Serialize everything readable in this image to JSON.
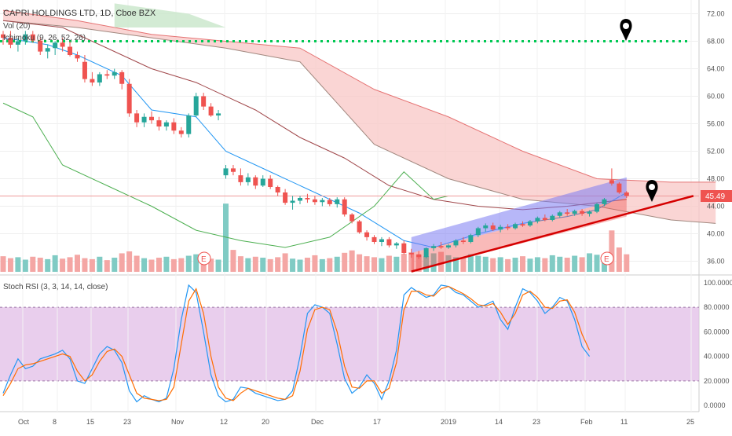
{
  "header": {
    "title": "CAPRI HOLDINGS LTD, 1D, Cboe BZX",
    "vol": "Vol (20)",
    "ichimoku": "Ichimoku (9, 26, 52, 26)"
  },
  "stoch": {
    "title": "Stoch RSI (3, 3, 14, 14, close)"
  },
  "colors": {
    "up": "#26a69a",
    "down": "#ef5350",
    "tenkan": "#2196f3",
    "kijun": "#a0474a",
    "lagging": "#4caf50",
    "cloud_red": "#f8c7c6",
    "cloud_green": "#c8e6c9",
    "stoch_bg": "#e1bee7",
    "stoch_k": "#2196f3",
    "stoch_d": "#ff6d00",
    "channel_blue": "#7b7cf3",
    "channel_red": "#ef5350",
    "trend": "#d50000",
    "dotted": "#00c853"
  },
  "chart_data": [
    {
      "type": "candlestick",
      "title": "CAPRI HOLDINGS LTD, 1D, Cboe BZX",
      "ylim": [
        34,
        74
      ],
      "y_ticks": [
        "72.00",
        "68.00",
        "64.00",
        "60.00",
        "56.00",
        "52.00",
        "48.00",
        "44.00",
        "40.00",
        "36.00"
      ],
      "x_ticks": [
        "Oct",
        "8",
        "15",
        "23",
        "Nov",
        "12",
        "20",
        "Dec",
        "17",
        "2019",
        "14",
        "23",
        "Feb",
        "11",
        "25"
      ],
      "last_price": "45.49",
      "resistance_level": 68.0,
      "earnings_markers": [
        "E",
        "E"
      ],
      "candles": [
        [
          69,
          69.5,
          67.5,
          68.5
        ],
        [
          68.5,
          69.5,
          67,
          67.5
        ],
        [
          67.5,
          68.5,
          66.5,
          68
        ],
        [
          68,
          69.5,
          67.5,
          69
        ],
        [
          69,
          69.5,
          67.8,
          68.1
        ],
        [
          68.1,
          68.5,
          66,
          66.5
        ],
        [
          66.5,
          67.5,
          65.5,
          67
        ],
        [
          67,
          68,
          66,
          67.8
        ],
        [
          67.8,
          68.5,
          66.5,
          67.2
        ],
        [
          67.2,
          68,
          65.8,
          66
        ],
        [
          66,
          66.5,
          65,
          65.5
        ],
        [
          65,
          66,
          62,
          62.5
        ],
        [
          62.5,
          63.5,
          61.5,
          62
        ],
        [
          62,
          63.5,
          61.5,
          63.2
        ],
        [
          63.2,
          63.8,
          62.5,
          63
        ],
        [
          63,
          64,
          62.5,
          63.5
        ],
        [
          63.5,
          63.8,
          61,
          61.8
        ],
        [
          61.8,
          62.5,
          57,
          57.5
        ],
        [
          57.5,
          58,
          55.5,
          56.2
        ],
        [
          56.2,
          57.5,
          55.5,
          57
        ],
        [
          57,
          57.8,
          56,
          56.5
        ],
        [
          56.5,
          57,
          55,
          55.6
        ],
        [
          55.6,
          56.5,
          55,
          56.2
        ],
        [
          56.2,
          56.8,
          54.5,
          55
        ],
        [
          55,
          55.5,
          54,
          54.5
        ],
        [
          54.5,
          57.5,
          54,
          57.2
        ],
        [
          57.2,
          60.5,
          57,
          60
        ],
        [
          60,
          60.5,
          58,
          58.5
        ],
        [
          58.5,
          59,
          57,
          57.2
        ],
        [
          57.2,
          58,
          56.5,
          57.5
        ],
        [
          48.5,
          50,
          48,
          49.5
        ],
        [
          49.5,
          50,
          48.5,
          49
        ],
        [
          48.5,
          49.5,
          47,
          47.5
        ],
        [
          47.5,
          48.8,
          47,
          48.2
        ],
        [
          48.2,
          48.5,
          46.5,
          47
        ],
        [
          47,
          48.5,
          46.8,
          48
        ],
        [
          48,
          48.5,
          46.5,
          46.8
        ],
        [
          46.8,
          47,
          45.5,
          46
        ],
        [
          46,
          46.5,
          44.2,
          44.5
        ],
        [
          44.5,
          45.5,
          43.5,
          44.8
        ],
        [
          44.8,
          45.5,
          44.3,
          45.2
        ],
        [
          45.2,
          45.8,
          44.5,
          45
        ],
        [
          45,
          45.5,
          44.2,
          44.6
        ],
        [
          44.6,
          45.2,
          44,
          44.9
        ],
        [
          44.9,
          45.2,
          44,
          44.3
        ],
        [
          44.3,
          45.3,
          43.8,
          45
        ],
        [
          45,
          45.3,
          42.5,
          42.8
        ],
        [
          42.8,
          43,
          41.5,
          41.8
        ],
        [
          41.8,
          42,
          40,
          40.2
        ],
        [
          40.2,
          40.5,
          39,
          39.5
        ],
        [
          39.5,
          39.8,
          38.5,
          38.8
        ],
        [
          38.8,
          39.5,
          38.2,
          39.2
        ],
        [
          39.2,
          39.5,
          38,
          38.3
        ],
        [
          38.3,
          38.8,
          37.8,
          38.6
        ],
        [
          38.6,
          39,
          37,
          37.2
        ],
        [
          37.2,
          37.8,
          36.5,
          37
        ],
        [
          37,
          37.5,
          36.3,
          36.6
        ],
        [
          36.6,
          38,
          36.4,
          37.9
        ],
        [
          37.9,
          38.5,
          37.5,
          38.2
        ],
        [
          38.2,
          38.8,
          37.8,
          38
        ],
        [
          38,
          38.5,
          37.8,
          38.3
        ],
        [
          38.3,
          39.2,
          38,
          39
        ],
        [
          39,
          39.5,
          38.5,
          38.8
        ],
        [
          38.8,
          40,
          38.6,
          39.8
        ],
        [
          39.8,
          41,
          39.5,
          40.8
        ],
        [
          40.8,
          41.5,
          40.3,
          41.2
        ],
        [
          41.2,
          41.6,
          40.4,
          40.6
        ],
        [
          40.6,
          41.3,
          40.2,
          41
        ],
        [
          41,
          41.4,
          40.5,
          40.8
        ],
        [
          40.8,
          41.6,
          40.6,
          41.4
        ],
        [
          41.4,
          41.8,
          41,
          41.2
        ],
        [
          41.2,
          42,
          41,
          41.8
        ],
        [
          41.8,
          42.5,
          41.5,
          42.3
        ],
        [
          42.3,
          42.8,
          41.8,
          42
        ],
        [
          42,
          42.8,
          41.8,
          42.6
        ],
        [
          42.6,
          43.3,
          42.3,
          43.1
        ],
        [
          43.1,
          43.6,
          42.6,
          42.9
        ],
        [
          42.9,
          43.5,
          42.6,
          43.3
        ],
        [
          43.3,
          43.6,
          42.6,
          42.9
        ],
        [
          42.9,
          43.4,
          42.5,
          43.2
        ],
        [
          43.2,
          44.5,
          43,
          44.3
        ],
        [
          44.3,
          45.2,
          44,
          45
        ],
        [
          47.8,
          49.5,
          47,
          47.3
        ],
        [
          47.3,
          47.5,
          45.8,
          46
        ],
        [
          46,
          46.2,
          45.2,
          45.5
        ]
      ],
      "volume": [
        3.2,
        2.8,
        3.0,
        2.5,
        3.1,
        2.9,
        2.6,
        3.4,
        2.7,
        3.0,
        3.5,
        2.8,
        2.6,
        3.1,
        2.4,
        2.9,
        3.8,
        4.2,
        3.3,
        2.8,
        2.5,
        2.9,
        3.1,
        2.6,
        2.8,
        3.3,
        3.6,
        3.0,
        2.7,
        2.5,
        14.0,
        4.5,
        3.2,
        2.8,
        3.1,
        2.9,
        2.6,
        3.0,
        3.8,
        2.7,
        2.5,
        2.9,
        3.4,
        2.6,
        2.8,
        3.1,
        3.9,
        4.4,
        3.6,
        3.2,
        3.0,
        2.8,
        3.3,
        3.1,
        3.7,
        4.0,
        3.5,
        3.2,
        3.8,
        4.1,
        3.4,
        3.0,
        2.9,
        3.6,
        3.3,
        3.1,
        2.8,
        3.0,
        2.6,
        2.9,
        3.2,
        2.7,
        3.0,
        2.8,
        3.4,
        3.1,
        2.9,
        3.3,
        3.0,
        3.8,
        3.5,
        3.2,
        8.5,
        5.0,
        3.6
      ],
      "tenkan": [
        [
          0,
          68.5
        ],
        [
          6,
          67.5
        ],
        [
          10,
          66
        ],
        [
          16,
          63
        ],
        [
          20,
          58
        ],
        [
          26,
          57
        ],
        [
          30,
          52
        ],
        [
          36,
          49
        ],
        [
          42,
          46
        ],
        [
          48,
          43
        ],
        [
          54,
          39
        ],
        [
          58,
          38
        ],
        [
          64,
          40
        ],
        [
          70,
          41.5
        ],
        [
          76,
          42.5
        ],
        [
          80,
          43.5
        ],
        [
          84,
          46
        ]
      ],
      "kijun": [
        [
          0,
          71
        ],
        [
          8,
          70
        ],
        [
          14,
          67
        ],
        [
          20,
          64
        ],
        [
          26,
          62
        ],
        [
          34,
          58
        ],
        [
          40,
          54
        ],
        [
          46,
          51
        ],
        [
          52,
          47
        ],
        [
          58,
          45
        ],
        [
          64,
          44
        ],
        [
          70,
          43.5
        ],
        [
          76,
          44
        ],
        [
          80,
          44.5
        ],
        [
          84,
          45
        ]
      ],
      "lagging": [
        [
          0,
          59
        ],
        [
          4,
          57
        ],
        [
          8,
          50
        ],
        [
          14,
          47
        ],
        [
          20,
          44
        ],
        [
          26,
          40.5
        ],
        [
          32,
          39
        ],
        [
          38,
          38
        ],
        [
          44,
          39.5
        ],
        [
          50,
          44
        ],
        [
          54,
          49
        ],
        [
          58,
          45
        ],
        [
          60,
          45.5
        ]
      ],
      "span_a": [
        [
          0,
          72.5
        ],
        [
          10,
          71
        ],
        [
          20,
          69
        ],
        [
          30,
          68
        ],
        [
          40,
          67
        ],
        [
          50,
          61
        ],
        [
          60,
          57
        ],
        [
          70,
          52
        ],
        [
          80,
          48
        ],
        [
          90,
          47.5
        ],
        [
          96,
          47.5
        ]
      ],
      "span_b": [
        [
          0,
          71
        ],
        [
          10,
          70
        ],
        [
          20,
          68.5
        ],
        [
          30,
          67
        ],
        [
          40,
          65
        ],
        [
          50,
          53
        ],
        [
          60,
          48
        ],
        [
          70,
          45
        ],
        [
          80,
          44
        ],
        [
          90,
          42
        ],
        [
          96,
          41.5
        ]
      ]
    },
    {
      "type": "line",
      "title": "Stoch RSI (3, 3, 14, 14, close)",
      "ylim": [
        -5,
        105
      ],
      "y_ticks": [
        "100.0000",
        "80.0000",
        "60.0000",
        "40.0000",
        "20.0000",
        "0.0000"
      ],
      "band": [
        20,
        80
      ],
      "series": [
        {
          "name": "K",
          "values": [
            10,
            25,
            38,
            30,
            32,
            38,
            40,
            42,
            45,
            38,
            20,
            18,
            30,
            42,
            48,
            45,
            35,
            12,
            3,
            8,
            5,
            3,
            6,
            30,
            70,
            98,
            92,
            60,
            25,
            8,
            3,
            5,
            15,
            14,
            10,
            8,
            6,
            4,
            5,
            12,
            40,
            75,
            82,
            80,
            75,
            50,
            22,
            10,
            15,
            25,
            18,
            5,
            20,
            45,
            90,
            96,
            92,
            88,
            90,
            98,
            97,
            92,
            90,
            85,
            80,
            82,
            85,
            70,
            62,
            80,
            95,
            92,
            85,
            75,
            80,
            88,
            85,
            70,
            48,
            40
          ]
        },
        {
          "name": "D",
          "values": [
            8,
            18,
            30,
            33,
            34,
            36,
            38,
            40,
            42,
            40,
            28,
            20,
            25,
            36,
            44,
            46,
            40,
            25,
            10,
            6,
            5,
            4,
            5,
            15,
            50,
            85,
            95,
            75,
            40,
            15,
            6,
            4,
            10,
            14,
            12,
            10,
            8,
            6,
            5,
            8,
            28,
            62,
            78,
            80,
            78,
            60,
            32,
            15,
            14,
            20,
            20,
            10,
            14,
            35,
            78,
            93,
            93,
            90,
            89,
            95,
            97,
            94,
            91,
            87,
            82,
            81,
            83,
            76,
            66,
            75,
            90,
            93,
            88,
            80,
            79,
            85,
            86,
            76,
            58,
            45
          ]
        }
      ]
    }
  ]
}
